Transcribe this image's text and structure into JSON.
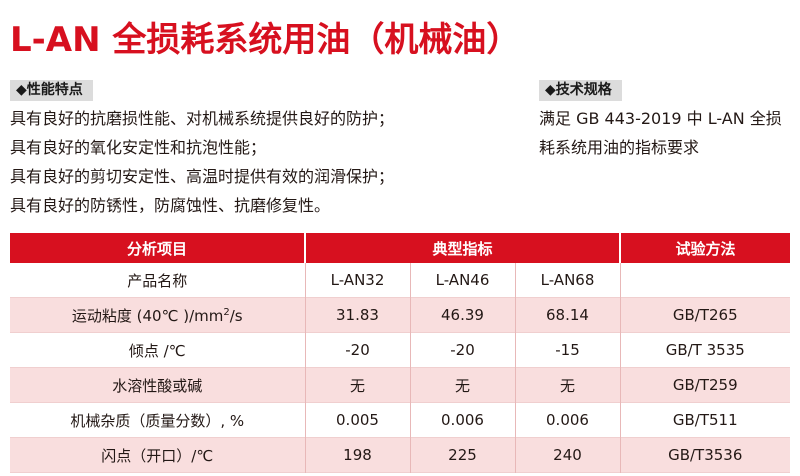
{
  "title": "L-AN 全损耗系统用油（机械油）",
  "features": {
    "heading": "◆性能特点",
    "items": [
      "具有良好的抗磨损性能、对机械系统提供良好的防护；",
      "具有良好的氧化安定性和抗泡性能；",
      "具有良好的剪切安定性、高温时提供有效的润滑保护；",
      "具有良好的防锈性，防腐蚀性、抗磨修复性。"
    ]
  },
  "spec": {
    "heading": "◆技术规格",
    "text": "满足 GB 443-2019 中 L-AN 全损耗系统用油的指标要求"
  },
  "table": {
    "headers": [
      "分析项目",
      "典型指标",
      "试验方法"
    ],
    "rows": [
      [
        "产品名称",
        "L-AN32",
        "L-AN46",
        "L-AN68",
        ""
      ],
      [
        "运动粘度 (40℃ )/mm²/s",
        "31.83",
        "46.39",
        "68.14",
        "GB/T265"
      ],
      [
        "倾点 /℃",
        "-20",
        "-20",
        "-15",
        "GB/T 3535"
      ],
      [
        "水溶性酸或碱",
        "无",
        "无",
        "无",
        "GB/T259"
      ],
      [
        "机械杂质（质量分数）, %",
        "0.005",
        "0.006",
        "0.006",
        "GB/T511"
      ],
      [
        "闪点（开口）/℃",
        "198",
        "225",
        "240",
        "GB/T3536"
      ]
    ]
  },
  "colors": {
    "accent": "#d7101f",
    "row_shade": "#f9dede",
    "tag_bg": "#dcdcdc"
  }
}
